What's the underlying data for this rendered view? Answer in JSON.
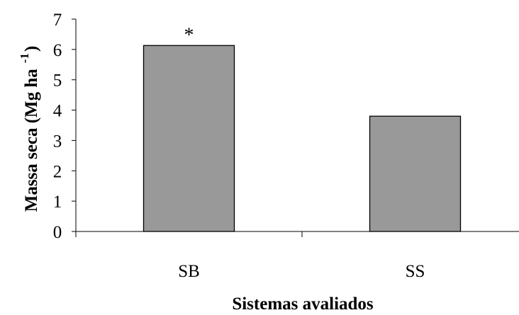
{
  "chart_data": {
    "type": "bar",
    "title": "",
    "xlabel": "Sistemas avaliados",
    "ylabel": "Massa seca (Mg ha",
    "ylabel_superscript": "-1",
    "ylabel_close": ")",
    "categories": [
      "SB",
      "SS"
    ],
    "values": [
      6.13,
      3.8
    ],
    "annotations": [
      "*",
      ""
    ],
    "ylim": [
      0,
      7
    ],
    "yticks": [
      "0",
      "1",
      "2",
      "3",
      "4",
      "5",
      "6",
      "7"
    ],
    "grid": false,
    "legend": "none",
    "bar_color": "#999999",
    "bar_edge_color": "#000000"
  }
}
